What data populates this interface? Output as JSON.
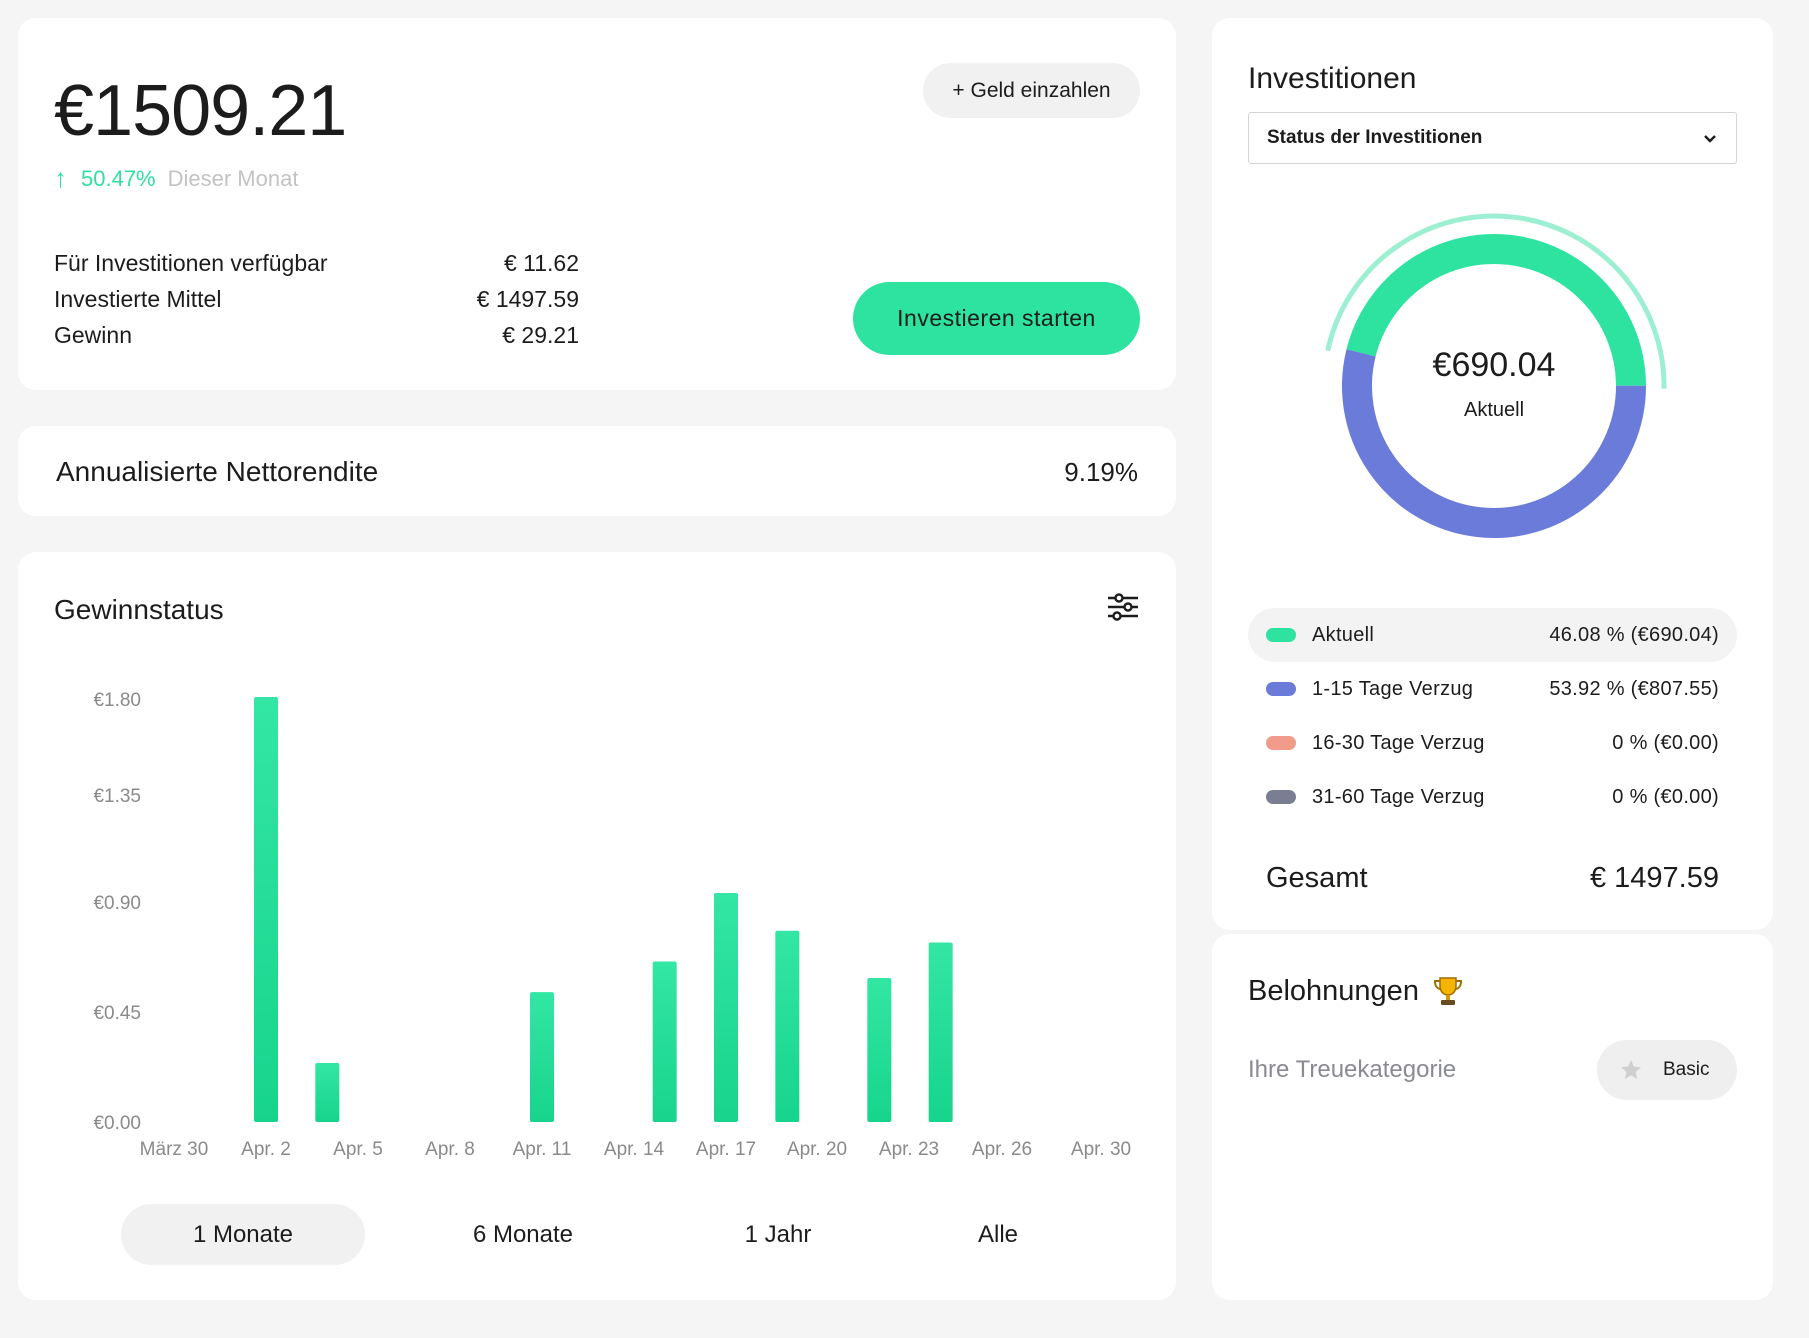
{
  "balance": {
    "amount": "€1509.21",
    "deposit_label": "+ Geld einzahlen",
    "change_pct": "50.47%",
    "change_period": "Dieser Monat",
    "stats": [
      {
        "label": "Für Investitionen verfügbar",
        "value": "€ 11.62"
      },
      {
        "label": "Investierte Mittel",
        "value": "€ 1497.59"
      },
      {
        "label": "Gewinn",
        "value": "€ 29.21"
      }
    ],
    "invest_label": "Investieren starten"
  },
  "annual_return": {
    "label": "Annualisierte Nettorendite",
    "value": "9.19%"
  },
  "profit_status": {
    "title": "Gewinnstatus",
    "ranges": [
      "1 Monate",
      "6 Monate",
      "1 Jahr",
      "Alle"
    ],
    "active_range": "1 Monate"
  },
  "chart_data": {
    "type": "bar",
    "title": "Gewinnstatus",
    "xlabel": "",
    "ylabel": "",
    "x_tick_labels": [
      "März 30",
      "Apr. 2",
      "Apr. 5",
      "Apr. 8",
      "Apr. 11",
      "Apr. 14",
      "Apr. 17",
      "Apr. 20",
      "Apr. 23",
      "Apr. 26",
      "Apr. 30"
    ],
    "y_tick_labels": [
      "€0.00",
      "€0.45",
      "€0.90",
      "€1.35",
      "€1.80"
    ],
    "ylim": [
      0,
      1.8
    ],
    "grid": false,
    "bars": [
      {
        "x": "Apr. 2",
        "value": 1.8
      },
      {
        "x": "Apr. 4",
        "value": 0.25
      },
      {
        "x": "Apr. 11",
        "value": 0.55
      },
      {
        "x": "Apr. 15",
        "value": 0.68
      },
      {
        "x": "Apr. 17",
        "value": 0.97
      },
      {
        "x": "Apr. 19",
        "value": 0.81
      },
      {
        "x": "Apr. 22",
        "value": 0.61
      },
      {
        "x": "Apr. 24",
        "value": 0.76
      }
    ],
    "bar_color": "#2ee39f"
  },
  "investments": {
    "title": "Investitionen",
    "select_value": "Status der Investitionen",
    "donut_value": "€690.04",
    "donut_label": "Aktuell",
    "donut_segments": [
      {
        "name": "Aktuell",
        "pct": 46.08,
        "color": "#2ee39f"
      },
      {
        "name": "1-15 Tage Verzug",
        "pct": 53.92,
        "color": "#6b7bd9"
      }
    ],
    "legend": [
      {
        "name": "Aktuell",
        "value": "46.08 % (€690.04)",
        "color": "#2ee39f"
      },
      {
        "name": "1-15 Tage Verzug",
        "value": "53.92 % (€807.55)",
        "color": "#6b7bd9"
      },
      {
        "name": "16-30 Tage Verzug",
        "value": "0 % (€0.00)",
        "color": "#f29b8a"
      },
      {
        "name": "31-60 Tage Verzug",
        "value": "0 % (€0.00)",
        "color": "#7a7e93"
      }
    ],
    "total_label": "Gesamt",
    "total_value": "€ 1497.59"
  },
  "rewards": {
    "title": "Belohnungen",
    "loyalty_label": "Ihre Treuekategorie",
    "tier": "Basic",
    "icons": [
      "trophy-icon",
      "star-icon"
    ]
  }
}
